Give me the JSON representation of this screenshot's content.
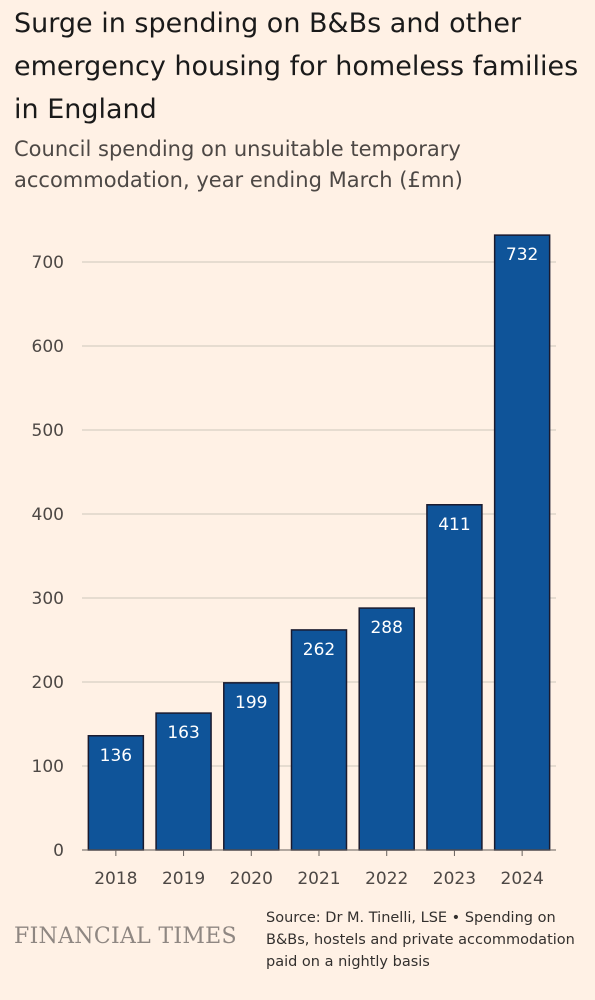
{
  "title": "Surge in spending on B&Bs and other emergency housing for homeless families in England",
  "subtitle": "Council spending on unsuitable temporary accommodation, year ending March (£mn)",
  "brand": "FINANCIAL TIMES",
  "source": "Source: Dr M. Tinelli, LSE • Spending on B&Bs, hostels and private accommodation paid on a nightly basis",
  "colors": {
    "background": "#FFF1E5",
    "bar": "#0F5499",
    "text": "#33302E"
  },
  "chart_data": {
    "type": "bar",
    "title": "Surge in spending on B&Bs and other emergency housing for homeless families in England",
    "subtitle": "Council spending on unsuitable temporary accommodation, year ending March (£mn)",
    "categories": [
      "2018",
      "2019",
      "2020",
      "2021",
      "2022",
      "2023",
      "2024"
    ],
    "values": [
      136,
      163,
      199,
      262,
      288,
      411,
      732
    ],
    "data_labels": [
      "136",
      "163",
      "199",
      "262",
      "288",
      "411",
      "732"
    ],
    "xlabel": "",
    "ylabel": "",
    "ylim": [
      0,
      740
    ],
    "yticks": [
      0,
      100,
      200,
      300,
      400,
      500,
      600,
      700
    ],
    "grid": true,
    "legend": "none"
  }
}
